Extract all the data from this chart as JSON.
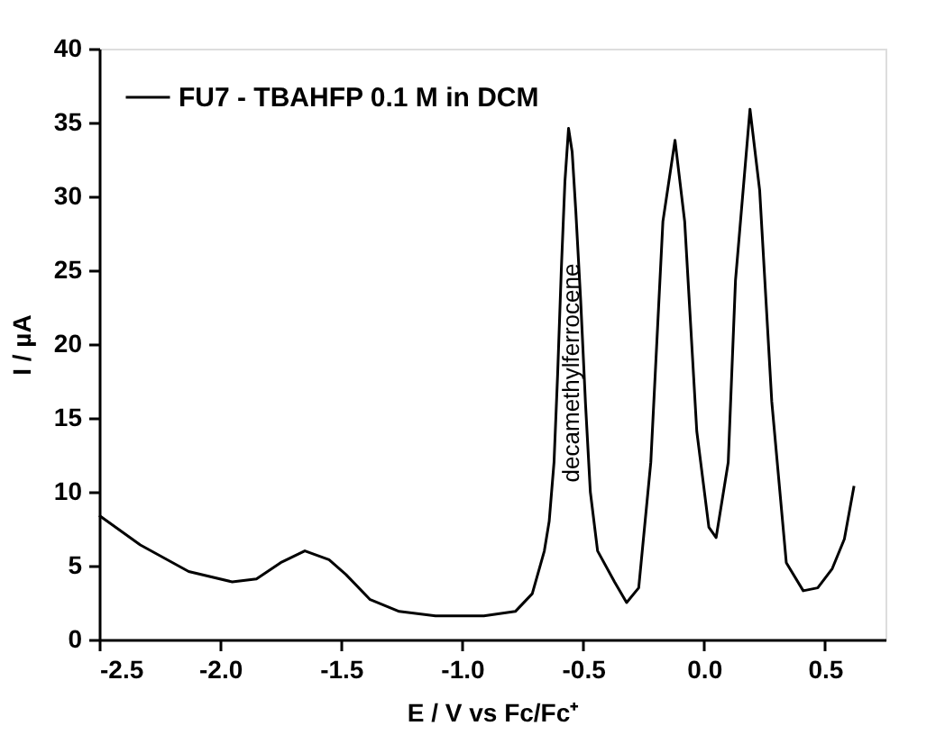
{
  "chart_data": {
    "type": "line",
    "xlabel": "E / V vs Fc/Fc⁺",
    "ylabel": "I / µA",
    "xlim": [
      -2.5,
      0.75
    ],
    "xticks": [
      {
        "value": -2.5,
        "label": "-2.5"
      },
      {
        "value": -2.0,
        "label": "-2.0"
      },
      {
        "value": -1.5,
        "label": "-1.5"
      },
      {
        "value": -1.0,
        "label": "-1.0"
      },
      {
        "value": -0.5,
        "label": "-0.5"
      },
      {
        "value": 0.0,
        "label": "0.0"
      },
      {
        "value": 0.5,
        "label": "0.5"
      }
    ],
    "ylim": [
      0,
      40
    ],
    "yticks": [
      0,
      5,
      10,
      15,
      20,
      25,
      30,
      35,
      40
    ],
    "grid": false,
    "legend": "top left",
    "line_style": "solid",
    "marker": "none",
    "annotations": [
      "decamethylferrocene"
    ],
    "series": [
      {
        "name": "FU7 - TBAHFP 0.1 M in DCM",
        "color": "#000000",
        "x": [
          -2.5,
          -2.33,
          -2.13,
          -1.95,
          -1.85,
          -1.75,
          -1.65,
          -1.55,
          -1.48,
          -1.38,
          -1.26,
          -1.11,
          -0.91,
          -0.78,
          -0.71,
          -0.66,
          -0.64,
          -0.62,
          -0.605,
          -0.59,
          -0.575,
          -0.56,
          -0.545,
          -0.53,
          -0.51,
          -0.49,
          -0.47,
          -0.44,
          -0.37,
          -0.32,
          -0.27,
          -0.22,
          -0.17,
          -0.12,
          -0.08,
          -0.03,
          0.02,
          0.05,
          0.1,
          0.13,
          0.19,
          0.23,
          0.28,
          0.34,
          0.41,
          0.47,
          0.53,
          0.58,
          0.62
        ],
        "values": [
          8.4,
          6.4,
          4.6,
          3.9,
          4.1,
          5.2,
          6.0,
          5.4,
          4.4,
          2.7,
          1.9,
          1.6,
          1.6,
          1.9,
          3.1,
          6.0,
          8,
          12,
          18,
          25,
          31,
          34.6,
          33,
          29,
          23,
          16,
          10,
          6,
          3.9,
          2.5,
          3.5,
          12,
          28.3,
          33.8,
          28.3,
          14.1,
          7.6,
          6.9,
          12,
          24.3,
          35.9,
          30.4,
          16.1,
          5.2,
          3.3,
          3.5,
          4.8,
          6.8,
          10.4
        ]
      }
    ]
  }
}
